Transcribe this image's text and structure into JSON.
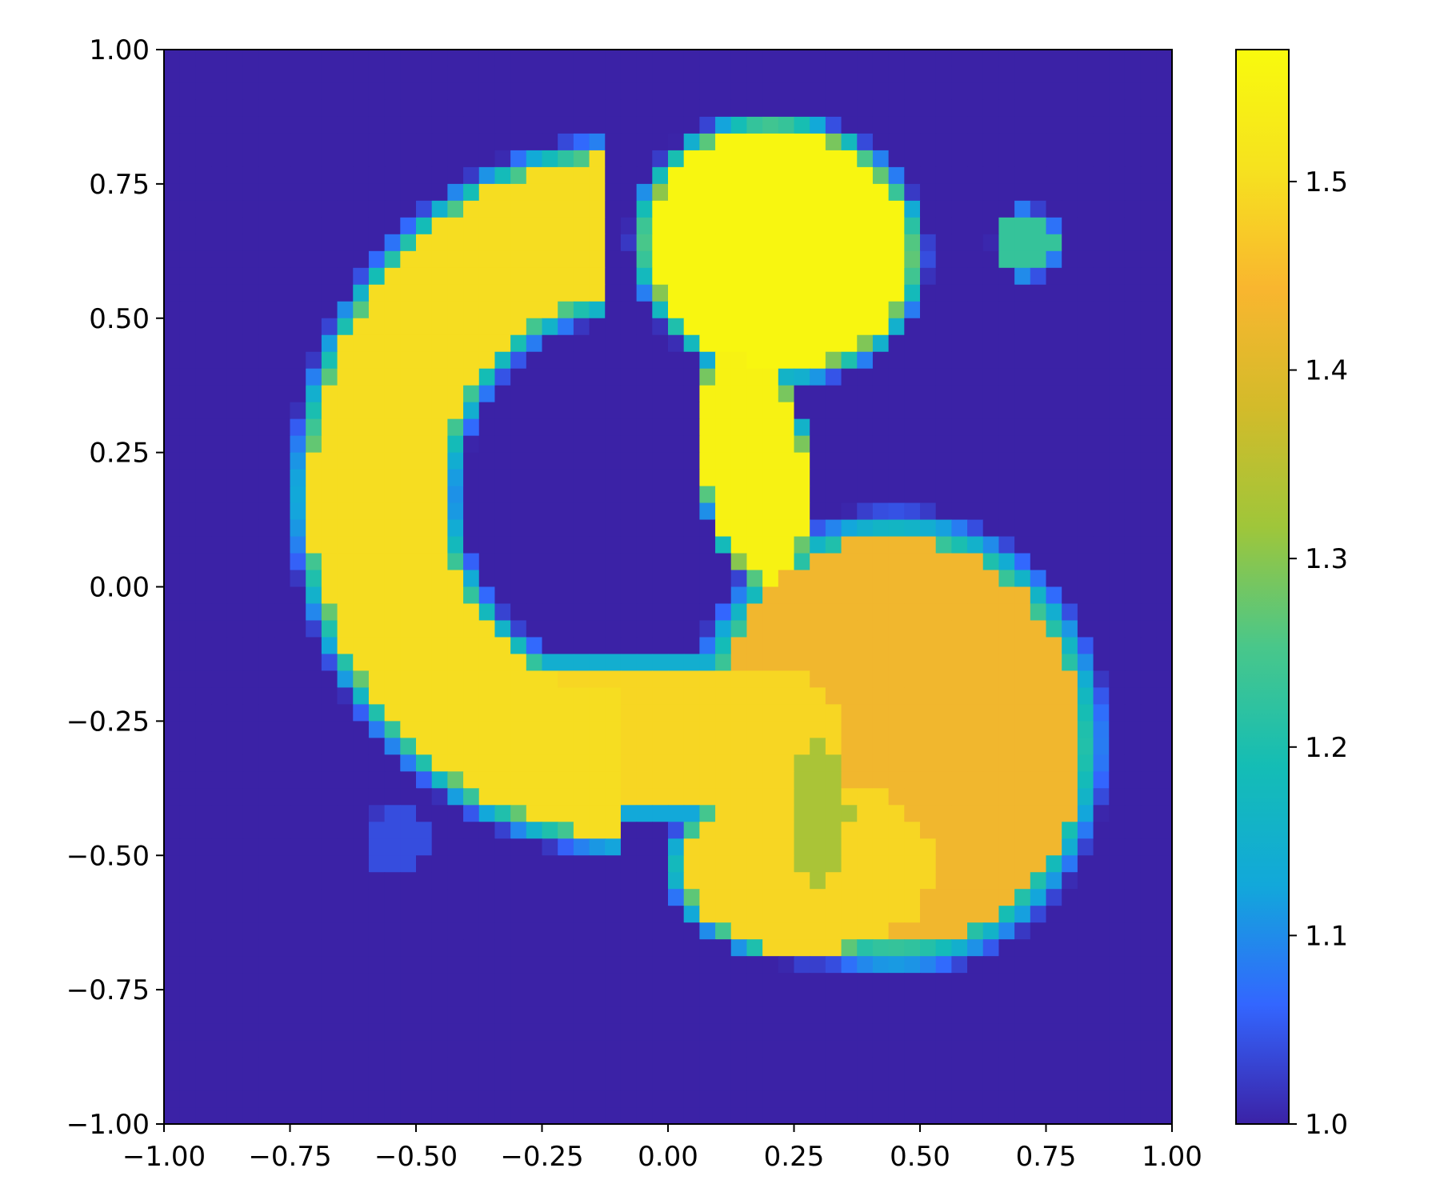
{
  "chart_data": {
    "type": "heatmap",
    "title": "",
    "xlabel": "",
    "ylabel": "",
    "xlim": [
      -1.0,
      1.0
    ],
    "ylim": [
      -1.0,
      1.0
    ],
    "x_ticks": [
      "−1.00",
      "−0.75",
      "−0.50",
      "−0.25",
      "0.00",
      "0.25",
      "0.50",
      "0.75",
      "1.00"
    ],
    "x_tick_values": [
      -1.0,
      -0.75,
      -0.5,
      -0.25,
      0.0,
      0.25,
      0.5,
      0.75,
      1.0
    ],
    "y_ticks": [
      "1.00",
      "0.75",
      "0.50",
      "0.25",
      "0.00",
      "−0.25",
      "−0.50",
      "−0.75",
      "−1.00"
    ],
    "y_tick_values": [
      1.0,
      0.75,
      0.5,
      0.25,
      0.0,
      -0.25,
      -0.5,
      -0.75,
      -1.0
    ],
    "grid": false,
    "grid_resolution": 64,
    "colorbar": {
      "range": [
        1.0,
        1.57
      ],
      "ticks": [
        "1.0",
        "1.1",
        "1.2",
        "1.3",
        "1.4",
        "1.5"
      ],
      "tick_values": [
        1.0,
        1.1,
        1.2,
        1.3,
        1.4,
        1.5
      ],
      "colormap": [
        "#3b22a6",
        "#3366ff",
        "#12a8da",
        "#14bdb5",
        "#49c78a",
        "#9fc63a",
        "#d3bb2a",
        "#f9b62f",
        "#f6e21f",
        "#f8fa0d"
      ]
    },
    "background_value": 1.0,
    "features": [
      {
        "shape": "ellipse",
        "name": "upper-right blob",
        "center": [
          0.22,
          0.63
        ],
        "semi_axes": [
          0.26,
          0.22
        ],
        "rotation_deg": -10,
        "value": 1.56
      },
      {
        "shape": "ellipse",
        "name": "teardrop",
        "center": [
          0.17,
          0.23
        ],
        "semi_axes": [
          0.1,
          0.22
        ],
        "rotation_deg": 10,
        "value": 1.55
      },
      {
        "shape": "arc",
        "name": "left arc band",
        "center": [
          -0.08,
          0.17
        ],
        "radius": 0.5,
        "half_width": 0.13,
        "start_deg": 95,
        "end_deg": 268,
        "value": 1.5
      },
      {
        "shape": "segment",
        "name": "bottom bar",
        "from": [
          -0.33,
          -0.28
        ],
        "to": [
          0.22,
          -0.28
        ],
        "half_width": 0.12,
        "value": 1.49
      },
      {
        "shape": "ellipse",
        "name": "lower-right blob",
        "center": [
          0.45,
          -0.29
        ],
        "semi_axes": [
          0.37,
          0.38
        ],
        "rotation_deg": 0,
        "value": 1.43
      },
      {
        "shape": "ellipse",
        "name": "lower lobe",
        "center": [
          0.28,
          -0.52
        ],
        "semi_axes": [
          0.25,
          0.16
        ],
        "rotation_deg": 0,
        "value": 1.49
      },
      {
        "shape": "ellipse",
        "name": "small blob",
        "center": [
          0.71,
          0.64
        ],
        "semi_axes": [
          0.06,
          0.06
        ],
        "rotation_deg": 0,
        "value": 1.23
      },
      {
        "shape": "ellipse",
        "name": "dip",
        "center": [
          0.3,
          -0.42
        ],
        "semi_axes": [
          0.06,
          0.13
        ],
        "rotation_deg": 0,
        "value": 1.33,
        "mode": "set"
      },
      {
        "shape": "ellipse",
        "name": "faint spot",
        "center": [
          -0.54,
          -0.47
        ],
        "semi_axes": [
          0.06,
          0.06
        ],
        "rotation_deg": 0,
        "value": 1.04,
        "mode": "max"
      }
    ]
  }
}
